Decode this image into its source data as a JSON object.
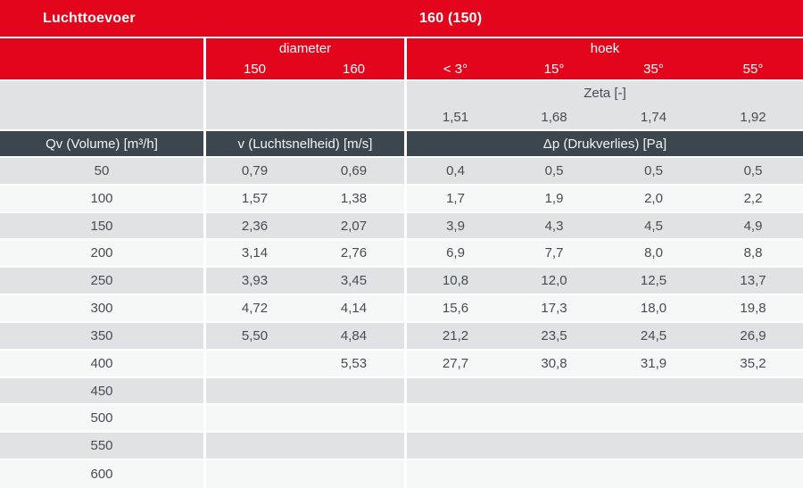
{
  "chart_data": {
    "type": "table",
    "title": "Luchttoevoer",
    "variant": "160 (150)",
    "column_groups": {
      "diameter": "diameter",
      "hoek": "hoek"
    },
    "diameter_columns": [
      "150",
      "160"
    ],
    "hoek_columns": [
      "< 3°",
      "15°",
      "35°",
      "55°"
    ],
    "zeta": {
      "label": "Zeta [-]",
      "values": [
        "1,51",
        "1,68",
        "1,74",
        "1,92"
      ]
    },
    "measure_headers": {
      "qv": "Qv (Volume) [m³/h]",
      "v": "v (Luchtsnelheid) [m/s]",
      "dp": "Δp (Drukverlies) [Pa]"
    },
    "rows": [
      [
        "50",
        "0,79",
        "0,69",
        "0,4",
        "0,5",
        "0,5",
        "0,5"
      ],
      [
        "100",
        "1,57",
        "1,38",
        "1,7",
        "1,9",
        "2,0",
        "2,2"
      ],
      [
        "150",
        "2,36",
        "2,07",
        "3,9",
        "4,3",
        "4,5",
        "4,9"
      ],
      [
        "200",
        "3,14",
        "2,76",
        "6,9",
        "7,7",
        "8,0",
        "8,8"
      ],
      [
        "250",
        "3,93",
        "3,45",
        "10,8",
        "12,0",
        "12,5",
        "13,7"
      ],
      [
        "300",
        "4,72",
        "4,14",
        "15,6",
        "17,3",
        "18,0",
        "19,8"
      ],
      [
        "350",
        "5,50",
        "4,84",
        "21,2",
        "23,5",
        "24,5",
        "26,9"
      ],
      [
        "400",
        "",
        "5,53",
        "27,7",
        "30,8",
        "31,9",
        "35,2"
      ],
      [
        "450",
        "",
        "",
        "",
        "",
        "",
        ""
      ],
      [
        "500",
        "",
        "",
        "",
        "",
        "",
        ""
      ],
      [
        "550",
        "",
        "",
        "",
        "",
        "",
        ""
      ],
      [
        "600",
        "",
        "",
        "",
        "",
        "",
        ""
      ]
    ]
  },
  "colors": {
    "brand_red": "#e2051c",
    "header_dark": "#3b464f",
    "row_gray": "#e0e2e4",
    "row_light": "#f6f7f7",
    "text_dark": "#474d54",
    "divider_white": "#ffffff"
  }
}
